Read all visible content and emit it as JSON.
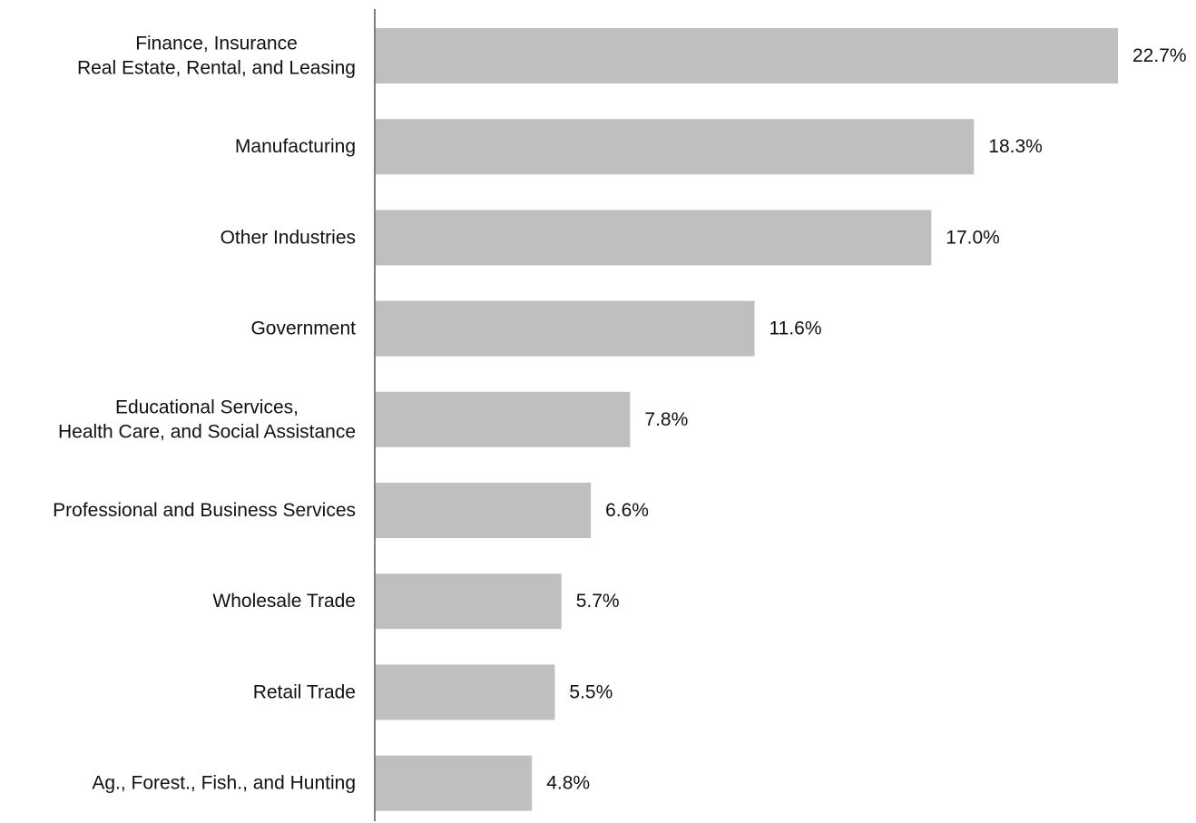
{
  "chart_data": {
    "type": "bar",
    "orientation": "horizontal",
    "title": "",
    "xlabel": "",
    "ylabel": "",
    "grid": false,
    "legend": "none",
    "categories": [
      [
        "Finance, Insurance",
        "Real Estate, Rental, and Leasing"
      ],
      [
        "Manufacturing"
      ],
      [
        "Other Industries"
      ],
      [
        "Government"
      ],
      [
        "Educational Services,",
        "Health Care, and Social Assistance"
      ],
      [
        "Professional and Business Services"
      ],
      [
        "Wholesale Trade"
      ],
      [
        "Retail Trade"
      ],
      [
        "Ag., Forest., Fish., and Hunting"
      ]
    ],
    "values": [
      22.7,
      18.3,
      17.0,
      11.6,
      7.8,
      6.6,
      5.7,
      5.5,
      4.8
    ],
    "value_labels": [
      "22.7%",
      "18.3%",
      "17.0%",
      "11.6%",
      "7.8%",
      "6.6%",
      "5.7%",
      "5.5%",
      "4.8%"
    ],
    "xlim": [
      0,
      22.7
    ],
    "colors": {
      "bar": "#bfbfbf",
      "axis": "#808080",
      "text": "#111111"
    }
  }
}
